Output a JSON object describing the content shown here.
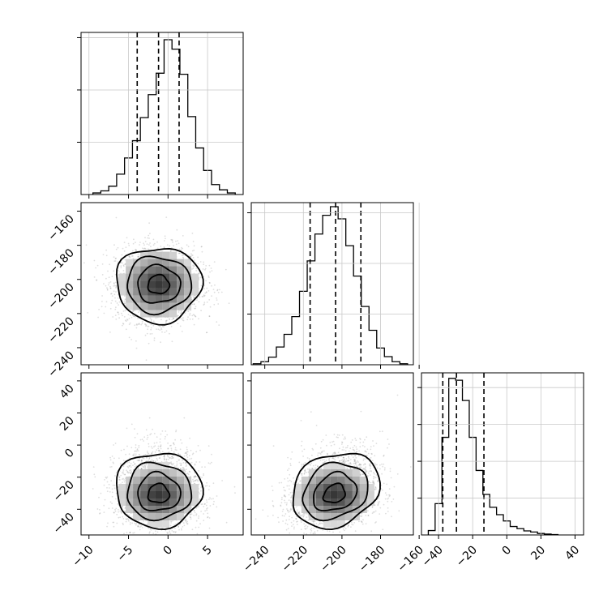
{
  "chart_data": [
    {
      "type": "histogram",
      "panel": "1-1",
      "xlim": [
        -11,
        9.5
      ],
      "ylim": [
        0,
        3100
      ],
      "grid": true,
      "bins": [
        -9.5,
        -8.5,
        -7.5,
        -6.5,
        -5.5,
        -4.5,
        -3.5,
        -2.5,
        -1.5,
        -0.5,
        0.5,
        1.5,
        2.5,
        3.5,
        4.5,
        5.5,
        6.5,
        7.5,
        8.5
      ],
      "counts": [
        30,
        70,
        160,
        390,
        700,
        1030,
        1470,
        1910,
        2320,
        2960,
        2780,
        2300,
        1490,
        890,
        460,
        190,
        90,
        30
      ],
      "quantile_lines": [
        -3.9,
        -1.2,
        1.4
      ]
    },
    {
      "type": "histogram",
      "panel": "2-2",
      "xlim": [
        -247,
        -163
      ],
      "ylim": [
        0,
        3200
      ],
      "grid": true,
      "bins": [
        -246,
        -242,
        -238,
        -234,
        -230,
        -226,
        -222,
        -218,
        -214,
        -210,
        -206,
        -202,
        -198,
        -194,
        -190,
        -186,
        -182,
        -178,
        -174,
        -170,
        -166
      ],
      "counts": [
        20,
        60,
        150,
        350,
        600,
        950,
        1450,
        2050,
        2580,
        2950,
        3120,
        2880,
        2350,
        1750,
        1150,
        680,
        330,
        160,
        60,
        20
      ],
      "quantile_lines": [
        -216.5,
        -203.3,
        -190.2
      ]
    },
    {
      "type": "histogram",
      "panel": "3-3",
      "xlim": [
        -50,
        45
      ],
      "ylim": [
        0,
        4400
      ],
      "grid": true,
      "bins": [
        -46,
        -42,
        -38,
        -34,
        -30,
        -26,
        -22,
        -18,
        -14,
        -10,
        -6,
        -2,
        2,
        6,
        10,
        14,
        18,
        22,
        26,
        30
      ],
      "counts": [
        120,
        850,
        2650,
        4250,
        4200,
        3650,
        2650,
        1750,
        1100,
        750,
        550,
        380,
        230,
        170,
        110,
        80,
        40,
        25,
        10
      ],
      "quantile_lines": [
        -37.5,
        -29.5,
        -13.4
      ]
    },
    {
      "type": "scatter",
      "panel": "2-1",
      "xlim": [
        -11,
        9.5
      ],
      "ylim": [
        -250,
        -155
      ],
      "grid": false,
      "center": [
        -1.2,
        -203
      ],
      "sigma": [
        2.7,
        11
      ],
      "contour_levels_sigma": [
        0.5,
        1.0,
        1.5,
        2.0
      ]
    },
    {
      "type": "scatter",
      "panel": "3-1",
      "xlim": [
        -11,
        9.5
      ],
      "ylim": [
        -56,
        45
      ],
      "grid": false,
      "center": [
        -1.2,
        -31
      ],
      "sigma": [
        2.7,
        10
      ]
    },
    {
      "type": "scatter",
      "panel": "3-2",
      "xlim": [
        -247,
        -163
      ],
      "ylim": [
        -56,
        45
      ],
      "grid": false,
      "center": [
        -204,
        -31
      ],
      "sigma": [
        11,
        10
      ]
    }
  ],
  "axes": {
    "x_ticks_col1": [
      "−10",
      "−5",
      "0",
      "5"
    ],
    "x_ticks_col2": [
      "−240",
      "−220",
      "−200",
      "−180",
      "−160"
    ],
    "x_ticks_col3": [
      "−40",
      "−20",
      "0",
      "20",
      "40"
    ],
    "y_ticks_row2": [
      "−160",
      "−180",
      "−200",
      "−220",
      "−240"
    ],
    "y_ticks_row3": [
      "40",
      "20",
      "0",
      "−20",
      "−40"
    ]
  }
}
